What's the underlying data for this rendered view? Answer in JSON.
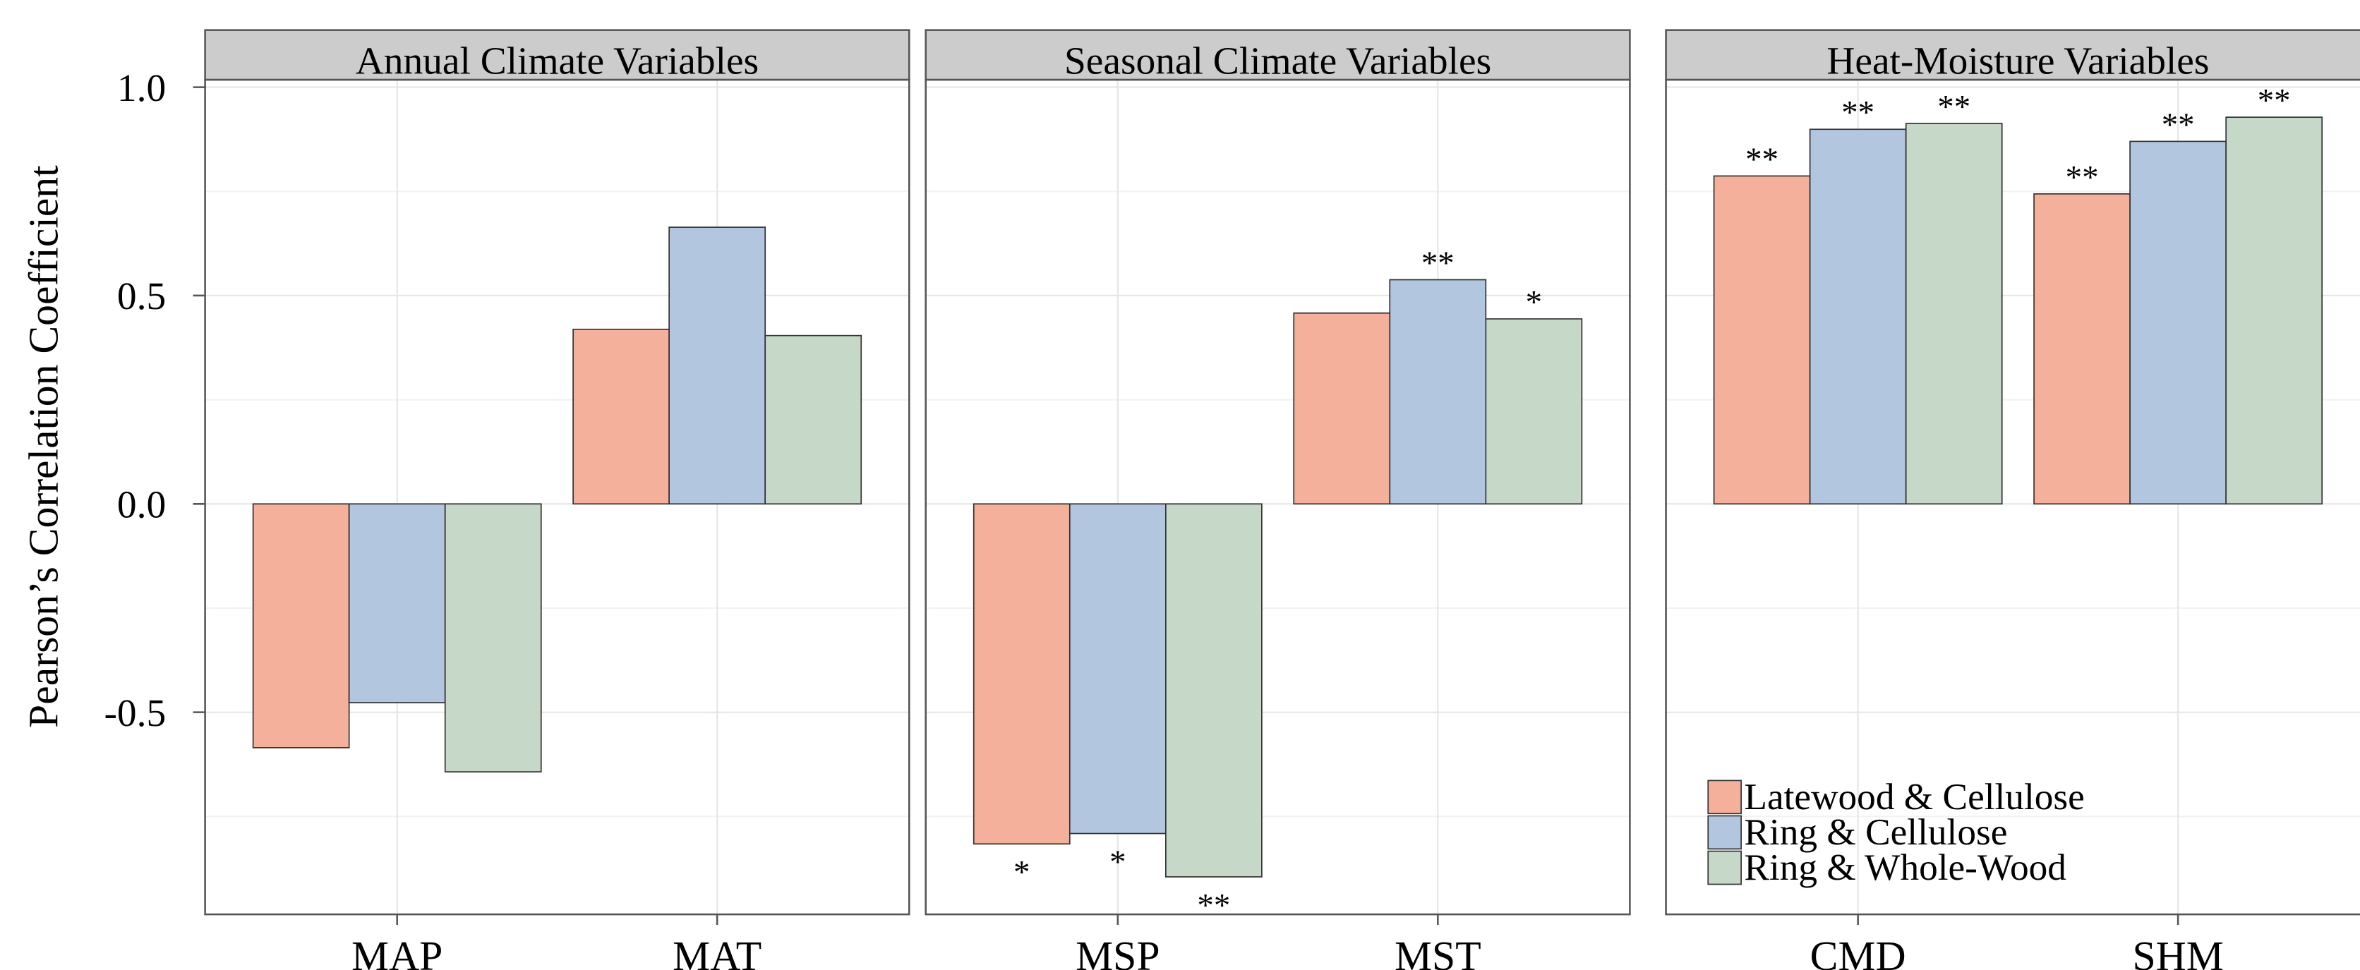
{
  "chart_data": {
    "type": "bar",
    "ylabel": "Pearson’s Correlation Coefficient",
    "ylim": [
      -0.985,
      1.018
    ],
    "yticks": [
      {
        "value": -0.5,
        "label": "-0.5"
      },
      {
        "value": 0,
        "label": "0.0"
      },
      0.5,
      {
        "value": 1,
        "label": "1.0"
      }
    ],
    "minor_yticks": [
      -0.75,
      -0.25,
      0.25,
      0.75
    ],
    "grid": true,
    "legend_position": "bottom-left",
    "legend": [
      {
        "name": "Latewood & Cellulose",
        "color": "#f4b09a"
      },
      {
        "name": "Ring & Cellulose",
        "color": "#b2c6e0"
      },
      {
        "name": "Ring & Whole-Wood",
        "color": "#c6d9c9"
      }
    ],
    "facets": [
      {
        "title": "Annual Climate Variables",
        "categories": [
          "MAP",
          "MAT"
        ],
        "series": [
          {
            "values": [
              -0.585,
              0.419
            ],
            "annotations": [
              null,
              null
            ]
          },
          {
            "values": [
              -0.477,
              0.664
            ],
            "annotations": [
              null,
              null
            ]
          },
          {
            "values": [
              -0.643,
              0.404
            ],
            "annotations": [
              null,
              null
            ]
          }
        ]
      },
      {
        "title": "Seasonal Climate Variables",
        "categories": [
          "MSP",
          "MST"
        ],
        "series": [
          {
            "values": [
              -0.816,
              0.458
            ],
            "annotations": [
              "*",
              null
            ]
          },
          {
            "values": [
              -0.791,
              0.538
            ],
            "annotations": [
              "*",
              "**"
            ]
          },
          {
            "values": [
              -0.895,
              0.444
            ],
            "annotations": [
              "**",
              "*"
            ]
          }
        ]
      },
      {
        "title": "Heat-Moisture Variables",
        "categories": [
          "CMD",
          "SHM"
        ],
        "series": [
          {
            "values": [
              0.787,
              0.744
            ],
            "annotations": [
              "**",
              "**"
            ]
          },
          {
            "values": [
              0.899,
              0.87
            ],
            "annotations": [
              "**",
              "**"
            ]
          },
          {
            "values": [
              0.913,
              0.928
            ],
            "annotations": [
              "**",
              "**"
            ]
          }
        ]
      }
    ]
  }
}
